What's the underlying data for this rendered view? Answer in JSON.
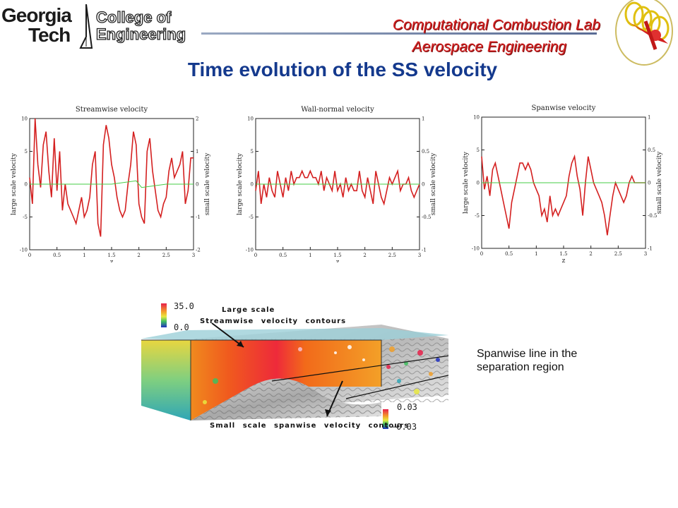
{
  "header": {
    "gt_line1": "Georgia",
    "gt_line2": "Tech",
    "coe_line1": "College of",
    "coe_line2": "Engineering",
    "lab_title": "Computational Combustion Lab",
    "lab_subtitle": "Aerospace Engineering"
  },
  "slide_title": "Time evolution of the SS velocity",
  "chart_data": [
    {
      "type": "line",
      "title": "Streamwise velocity",
      "xlabel": "z",
      "ylabel": "large scale velocity",
      "y2label": "small scale velocity",
      "xlim": [
        0,
        3
      ],
      "ylim": [
        -10,
        10
      ],
      "y2lim": [
        -2,
        2
      ],
      "xticks": [
        "0",
        "0.5",
        "1",
        "1.5",
        "2",
        "2.5",
        "3"
      ],
      "yticks": [
        "-10",
        "-5",
        "0",
        "5",
        "10"
      ],
      "y2ticks": [
        "-2",
        "-1",
        "0",
        "1",
        "2"
      ],
      "series": [
        {
          "name": "large scale",
          "color": "#d42020",
          "x": [
            0,
            0.05,
            0.1,
            0.15,
            0.2,
            0.25,
            0.3,
            0.35,
            0.4,
            0.45,
            0.5,
            0.55,
            0.6,
            0.65,
            0.7,
            0.75,
            0.8,
            0.85,
            0.9,
            0.95,
            1.0,
            1.05,
            1.1,
            1.15,
            1.2,
            1.25,
            1.3,
            1.35,
            1.4,
            1.45,
            1.5,
            1.55,
            1.6,
            1.65,
            1.7,
            1.75,
            1.8,
            1.85,
            1.9,
            1.95,
            2.0,
            2.05,
            2.1,
            2.15,
            2.2,
            2.25,
            2.3,
            2.35,
            2.4,
            2.45,
            2.5,
            2.55,
            2.6,
            2.65,
            2.7,
            2.75,
            2.8,
            2.85,
            2.9,
            2.95,
            3.0
          ],
          "y": [
            1,
            -3,
            10,
            3,
            -0.5,
            6,
            8,
            2,
            -2,
            7,
            -1,
            5,
            -4,
            0,
            -3,
            -4,
            -5,
            -6,
            -4,
            -2,
            -5,
            -4,
            -2,
            3,
            5,
            -6,
            -8,
            6,
            9,
            7,
            3,
            1,
            -2,
            -4,
            -5,
            -4,
            0,
            3,
            8,
            6,
            -3,
            -5,
            -6,
            5,
            7,
            2,
            -1,
            -4,
            -5,
            -3,
            -2,
            2,
            4,
            1,
            2,
            3,
            5,
            -3,
            -1,
            4,
            4
          ]
        },
        {
          "name": "small scale",
          "color": "#44cc44",
          "x": [
            0,
            0.5,
            1,
            1.5,
            1.95,
            2.05,
            2.5,
            3
          ],
          "y": [
            0,
            0,
            0,
            0,
            0.1,
            -0.1,
            0,
            0
          ]
        }
      ]
    },
    {
      "type": "line",
      "title": "Wall-normal velocity",
      "xlabel": "z",
      "ylabel": "large scale velocity",
      "y2label": "small scale velocity",
      "xlim": [
        0,
        3
      ],
      "ylim": [
        -10,
        10
      ],
      "y2lim": [
        -1,
        1
      ],
      "xticks": [
        "0",
        "0.5",
        "1",
        "1.5",
        "2",
        "2.5",
        "3"
      ],
      "yticks": [
        "-10",
        "-5",
        "0",
        "5",
        "10"
      ],
      "y2ticks": [
        "-1",
        "-0.5",
        "0",
        "0.5",
        "1"
      ],
      "series": [
        {
          "name": "large scale",
          "color": "#d42020",
          "x": [
            0,
            0.05,
            0.1,
            0.15,
            0.2,
            0.25,
            0.3,
            0.35,
            0.4,
            0.45,
            0.5,
            0.55,
            0.6,
            0.65,
            0.7,
            0.75,
            0.8,
            0.85,
            0.9,
            0.95,
            1.0,
            1.05,
            1.1,
            1.15,
            1.2,
            1.25,
            1.3,
            1.35,
            1.4,
            1.45,
            1.5,
            1.55,
            1.6,
            1.65,
            1.7,
            1.75,
            1.8,
            1.85,
            1.9,
            1.95,
            2.0,
            2.05,
            2.1,
            2.15,
            2.2,
            2.25,
            2.3,
            2.35,
            2.4,
            2.45,
            2.5,
            2.55,
            2.6,
            2.65,
            2.7,
            2.75,
            2.8,
            2.85,
            2.9,
            2.95,
            3.0
          ],
          "y": [
            -1,
            2,
            -3,
            0,
            -2,
            1,
            -1,
            -2,
            2,
            0,
            -2,
            1,
            -1,
            2,
            0,
            1,
            1,
            2,
            1,
            1,
            2,
            1,
            1,
            0,
            2,
            -1,
            1,
            0,
            -1,
            2,
            -1,
            0,
            -2,
            1,
            -1,
            0,
            -1,
            -1,
            2,
            -1,
            -2,
            1,
            -1,
            -3,
            2,
            0,
            -2,
            -3,
            -1,
            1,
            0,
            1,
            2,
            -1,
            0,
            0,
            1,
            -1,
            -2,
            -1,
            0
          ]
        },
        {
          "name": "small scale",
          "color": "#44cc44",
          "x": [
            0,
            0.5,
            1,
            1.5,
            2,
            2.5,
            3
          ],
          "y": [
            0,
            0,
            0,
            0,
            0,
            0,
            0
          ]
        }
      ]
    },
    {
      "type": "line",
      "title": "Spanwise velocity",
      "xlabel": "z",
      "ylabel": "large scale velocity",
      "y2label": "small scale velocity",
      "xlim": [
        0,
        3
      ],
      "ylim": [
        -10,
        10
      ],
      "y2lim": [
        -1,
        1
      ],
      "xticks": [
        "0",
        "0.5",
        "1",
        "1.5",
        "2",
        "2.5",
        "3"
      ],
      "yticks": [
        "-10",
        "-5",
        "0",
        "5",
        "10"
      ],
      "y2ticks": [
        "-1",
        "-0.5",
        "0",
        "0.5",
        "1"
      ],
      "series": [
        {
          "name": "large scale",
          "color": "#d42020",
          "x": [
            0,
            0.05,
            0.1,
            0.15,
            0.2,
            0.25,
            0.3,
            0.35,
            0.4,
            0.45,
            0.5,
            0.55,
            0.6,
            0.65,
            0.7,
            0.75,
            0.8,
            0.85,
            0.9,
            0.95,
            1.0,
            1.05,
            1.1,
            1.15,
            1.2,
            1.25,
            1.3,
            1.35,
            1.4,
            1.45,
            1.5,
            1.55,
            1.6,
            1.65,
            1.7,
            1.75,
            1.8,
            1.85,
            1.9,
            1.95,
            2.0,
            2.05,
            2.1,
            2.15,
            2.2,
            2.25,
            2.3,
            2.35,
            2.4,
            2.45,
            2.5,
            2.55,
            2.6,
            2.65,
            2.7,
            2.75,
            2.8,
            2.85,
            2.9,
            2.95,
            3.0
          ],
          "y": [
            4,
            -1,
            1,
            -2,
            2,
            3,
            1,
            -1,
            -3,
            -5,
            -7,
            -3,
            -1,
            1,
            3,
            3,
            2,
            3,
            2,
            0,
            -1,
            -2,
            -5,
            -4,
            -6,
            -2,
            -5,
            -4,
            -5,
            -4,
            -3,
            -2,
            1,
            3,
            4,
            1,
            -1,
            -5,
            0,
            4,
            2,
            0,
            -1,
            -2,
            -3,
            -5,
            -8,
            -5,
            -2,
            0,
            -1,
            -2,
            -3,
            -2,
            0,
            1,
            0,
            0,
            0,
            0,
            0
          ]
        },
        {
          "name": "small scale",
          "color": "#44cc44",
          "x": [
            0,
            0.5,
            1,
            1.5,
            2,
            2.5,
            3
          ],
          "y": [
            0,
            0,
            0,
            0,
            0,
            0,
            0
          ]
        }
      ]
    }
  ],
  "figure": {
    "top_scale_max": "35.0",
    "top_scale_min": "0.0",
    "label_large_scale_1": "Large scale",
    "label_large_scale_2": "Streamwise velocity contours",
    "label_small_scale": "Small scale spanwise velocity contours",
    "bottom_scale_max": "0.03",
    "bottom_scale_min": "−0.03"
  },
  "caption": "Spanwise line in the separation region",
  "colors": {
    "title": "#14398d",
    "lab": "#d42020",
    "large_line": "#d42020",
    "small_line": "#44cc44"
  }
}
